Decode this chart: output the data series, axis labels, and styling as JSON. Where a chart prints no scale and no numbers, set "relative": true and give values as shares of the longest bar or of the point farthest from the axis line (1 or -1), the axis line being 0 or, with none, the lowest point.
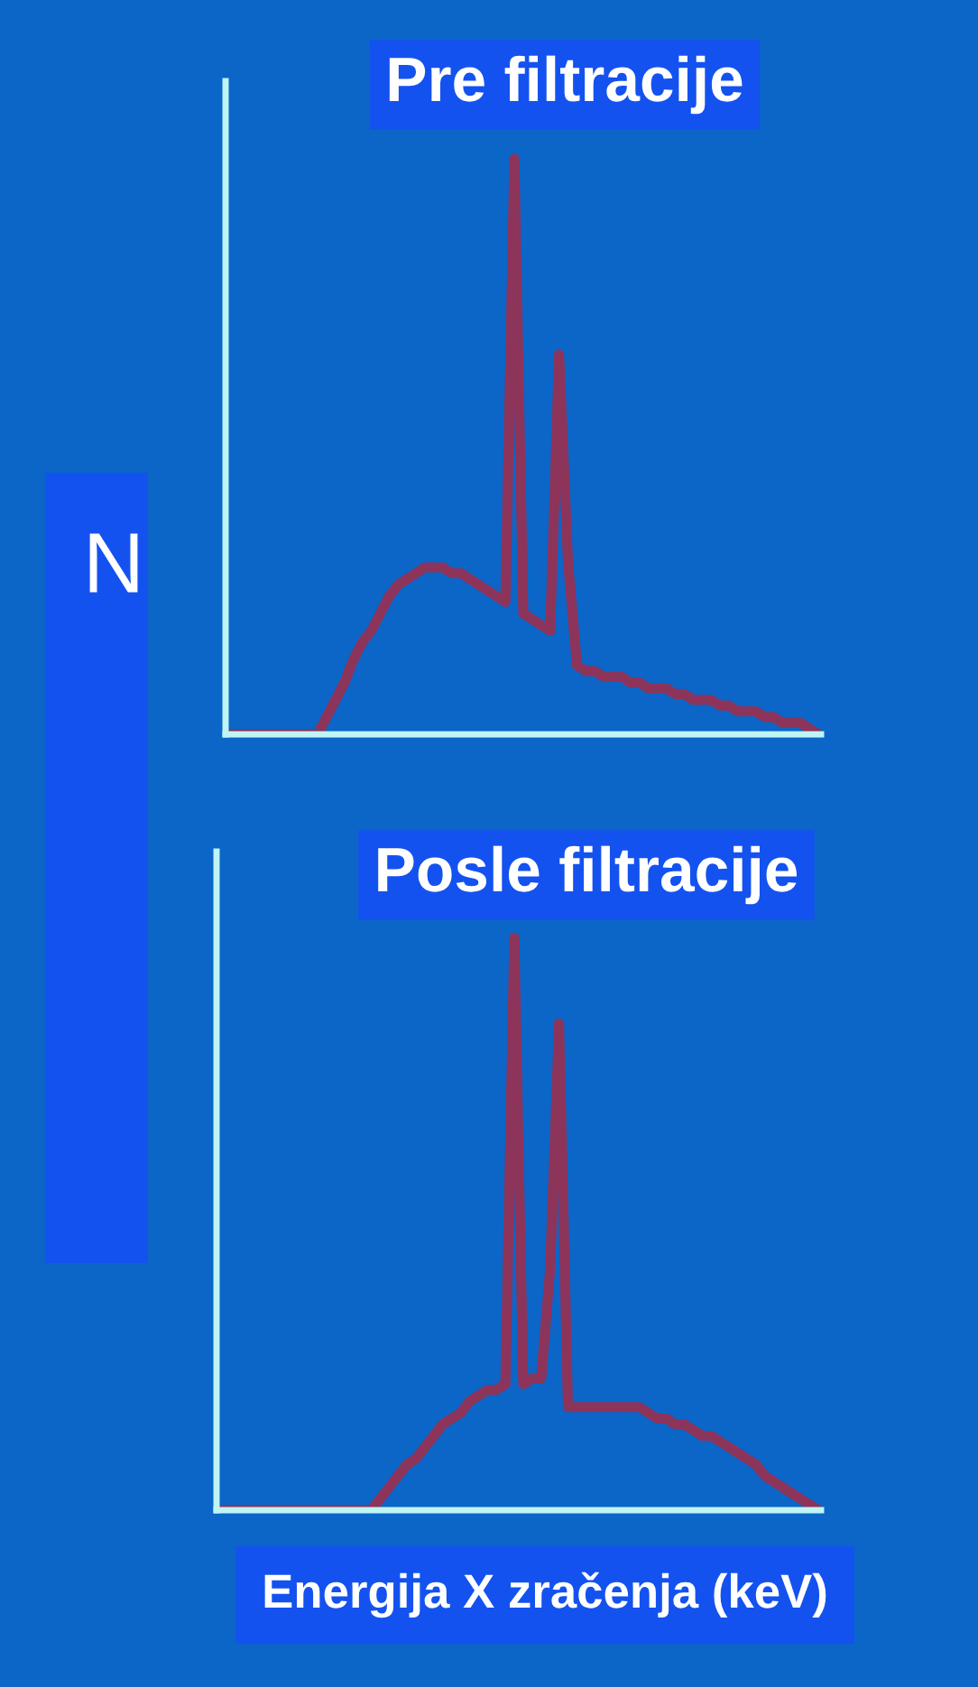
{
  "chart_data": [
    {
      "type": "line",
      "title": "Pre filtracije",
      "ylabel": "N",
      "relative": true,
      "categories": [
        null,
        null,
        null,
        null,
        null,
        null,
        null,
        null,
        null,
        null,
        null,
        null,
        null,
        null,
        null,
        null,
        null,
        null,
        null,
        null,
        null,
        null,
        null,
        null,
        null,
        null,
        null,
        null,
        null,
        null,
        null,
        null,
        null,
        null,
        null,
        null,
        null,
        null,
        null,
        null,
        null,
        null,
        null,
        null,
        null,
        null,
        null,
        null,
        null,
        null,
        null,
        null,
        null,
        null,
        null,
        null,
        null,
        null,
        null,
        null,
        null,
        null,
        null,
        null,
        null,
        null,
        null
      ],
      "series": [
        {
          "color": "#9b2f4f",
          "values": [
            0,
            0,
            0,
            0,
            0,
            0,
            0,
            0,
            0,
            0,
            0,
            0.03,
            0.06,
            0.09,
            0.13,
            0.16,
            0.18,
            0.21,
            0.24,
            0.26,
            0.27,
            0.28,
            0.29,
            0.29,
            0.29,
            0.28,
            0.28,
            0.27,
            0.26,
            0.25,
            0.24,
            0.23,
            1,
            0.21,
            0.2,
            0.19,
            0.18,
            0.66,
            0.3,
            0.12,
            0.11,
            0.11,
            0.1,
            0.1,
            0.1,
            0.09,
            0.09,
            0.08,
            0.08,
            0.08,
            0.07,
            0.07,
            0.06,
            0.06,
            0.06,
            0.05,
            0.05,
            0.04,
            0.04,
            0.04,
            0.03,
            0.03,
            0.02,
            0.02,
            0.02,
            0.01,
            0
          ]
        }
      ]
    },
    {
      "type": "line",
      "title": "Posle filtracije",
      "xlabel": "Energija X zračenja (keV)",
      "relative": true,
      "categories": [
        null,
        null,
        null,
        null,
        null,
        null,
        null,
        null,
        null,
        null,
        null,
        null,
        null,
        null,
        null,
        null,
        null,
        null,
        null,
        null,
        null,
        null,
        null,
        null,
        null,
        null,
        null,
        null,
        null,
        null,
        null,
        null,
        null,
        null,
        null,
        null,
        null,
        null,
        null,
        null,
        null,
        null,
        null,
        null,
        null,
        null,
        null,
        null,
        null,
        null,
        null,
        null,
        null,
        null,
        null,
        null,
        null,
        null,
        null,
        null,
        null,
        null,
        null,
        null,
        null,
        null,
        null,
        null
      ],
      "series": [
        {
          "color": "#9b2f4f",
          "values": [
            0,
            0,
            0,
            0,
            0,
            0,
            0,
            0,
            0,
            0,
            0,
            0,
            0,
            0,
            0,
            0,
            0,
            0,
            0.02,
            0.04,
            0.06,
            0.08,
            0.09,
            0.11,
            0.13,
            0.15,
            0.16,
            0.17,
            0.19,
            0.2,
            0.21,
            0.21,
            0.22,
            1,
            0.22,
            0.23,
            0.23,
            0.42,
            0.85,
            0.18,
            0.18,
            0.18,
            0.18,
            0.18,
            0.18,
            0.18,
            0.18,
            0.18,
            0.17,
            0.16,
            0.16,
            0.15,
            0.15,
            0.14,
            0.13,
            0.13,
            0.12,
            0.11,
            0.1,
            0.09,
            0.08,
            0.06,
            0.05,
            0.04,
            0.03,
            0.02,
            0.01,
            0
          ]
        }
      ]
    }
  ]
}
